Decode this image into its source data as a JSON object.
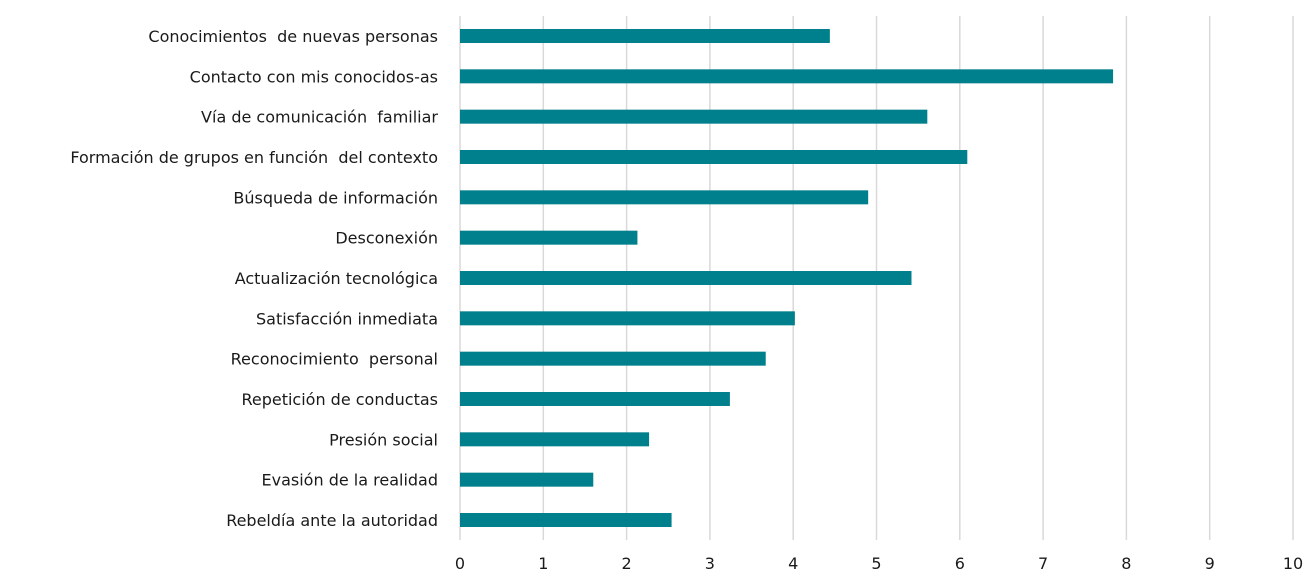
{
  "chart_data": {
    "type": "bar",
    "orientation": "horizontal",
    "categories": [
      "Conocimientos  de nuevas personas",
      "Contacto con mis conocidos-as",
      "Vía de comunicación  familiar",
      "Formación de grupos en función  del contexto",
      "Búsqueda de información",
      "Desconexión",
      "Actualización tecnológica",
      "Satisfacción inmediata",
      "Reconocimiento  personal",
      "Repetición de conductas",
      "Presión social",
      "Evasión de la realidad",
      "Rebeldía ante la autoridad"
    ],
    "values": [
      4.44,
      7.84,
      5.61,
      6.09,
      4.9,
      2.13,
      5.42,
      4.02,
      3.67,
      3.24,
      2.27,
      1.6,
      2.54
    ],
    "xlim": [
      0,
      10
    ],
    "xticks": [
      "0",
      "1",
      "2",
      "3",
      "4",
      "5",
      "6",
      "7",
      "8",
      "9",
      "10"
    ],
    "grid": "vertical",
    "bar_color": "#007F8C",
    "title": "",
    "xlabel": "",
    "ylabel": ""
  }
}
